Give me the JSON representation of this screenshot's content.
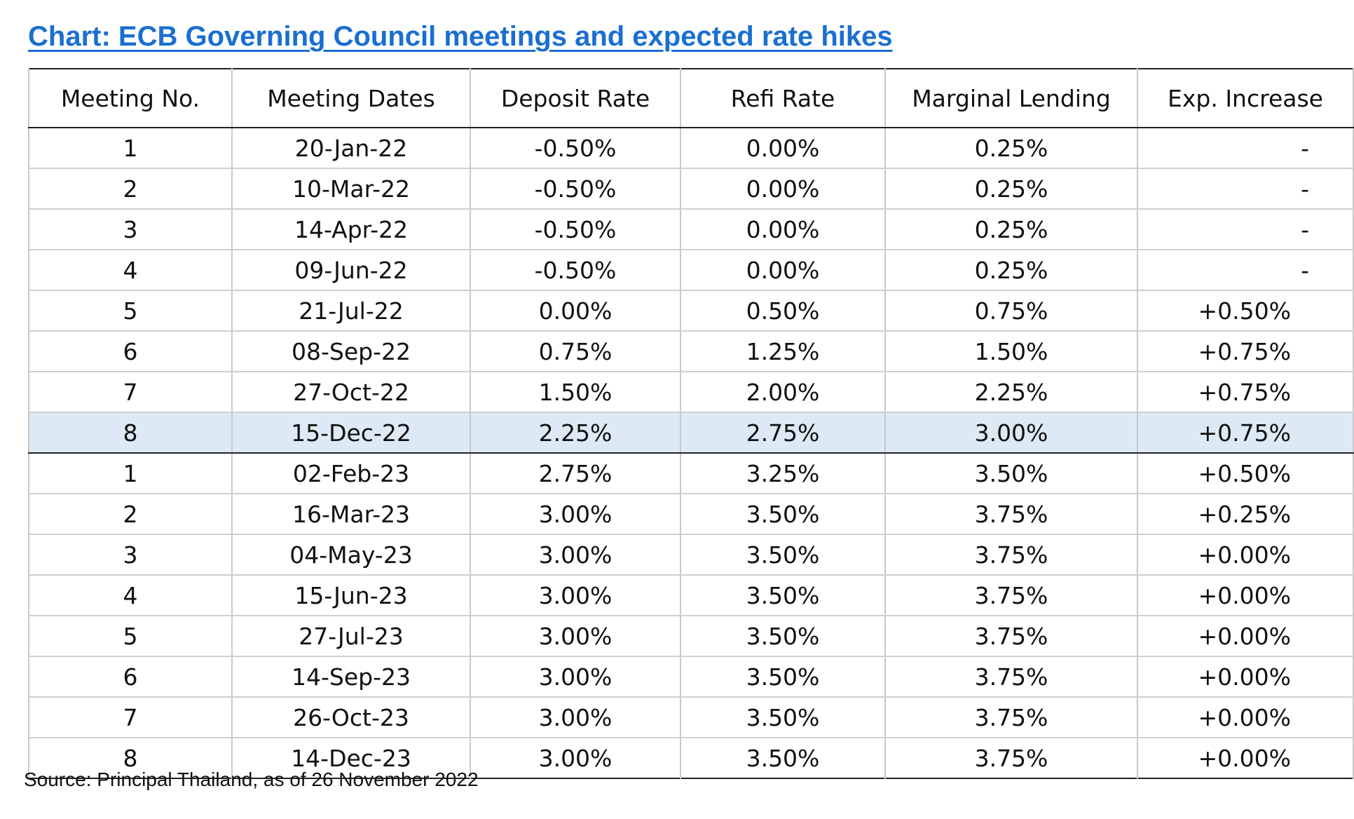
{
  "title": "Chart: ECB Governing Council meetings and expected rate hikes",
  "source": "Source: Principal Thailand, as of 26 November 2022",
  "colors": {
    "title": "#1a6fd0",
    "highlight_row": "#dde9f5"
  },
  "chart_data": {
    "type": "table",
    "title": "Chart: ECB Governing Council meetings and expected rate hikes",
    "columns": [
      "Meeting No.",
      "Meeting Dates",
      "Deposit Rate",
      "Refi Rate",
      "Marginal Lending",
      "Exp. Increase"
    ],
    "rows": [
      [
        "1",
        "20-Jan-22",
        "-0.50%",
        "0.00%",
        "0.25%",
        "-"
      ],
      [
        "2",
        "10-Mar-22",
        "-0.50%",
        "0.00%",
        "0.25%",
        "-"
      ],
      [
        "3",
        "14-Apr-22",
        "-0.50%",
        "0.00%",
        "0.25%",
        "-"
      ],
      [
        "4",
        "09-Jun-22",
        "-0.50%",
        "0.00%",
        "0.25%",
        "-"
      ],
      [
        "5",
        "21-Jul-22",
        "0.00%",
        "0.50%",
        "0.75%",
        "+0.50%"
      ],
      [
        "6",
        "08-Sep-22",
        "0.75%",
        "1.25%",
        "1.50%",
        "+0.75%"
      ],
      [
        "7",
        "27-Oct-22",
        "1.50%",
        "2.00%",
        "2.25%",
        "+0.75%"
      ],
      [
        "8",
        "15-Dec-22",
        "2.25%",
        "2.75%",
        "3.00%",
        "+0.75%"
      ],
      [
        "1",
        "02-Feb-23",
        "2.75%",
        "3.25%",
        "3.50%",
        "+0.50%"
      ],
      [
        "2",
        "16-Mar-23",
        "3.00%",
        "3.50%",
        "3.75%",
        "+0.25%"
      ],
      [
        "3",
        "04-May-23",
        "3.00%",
        "3.50%",
        "3.75%",
        "+0.00%"
      ],
      [
        "4",
        "15-Jun-23",
        "3.00%",
        "3.50%",
        "3.75%",
        "+0.00%"
      ],
      [
        "5",
        "27-Jul-23",
        "3.00%",
        "3.50%",
        "3.75%",
        "+0.00%"
      ],
      [
        "6",
        "14-Sep-23",
        "3.00%",
        "3.50%",
        "3.75%",
        "+0.00%"
      ],
      [
        "7",
        "26-Oct-23",
        "3.00%",
        "3.50%",
        "3.75%",
        "+0.00%"
      ],
      [
        "8",
        "14-Dec-23",
        "3.00%",
        "3.50%",
        "3.75%",
        "+0.00%"
      ]
    ],
    "highlighted_row": 7
  }
}
